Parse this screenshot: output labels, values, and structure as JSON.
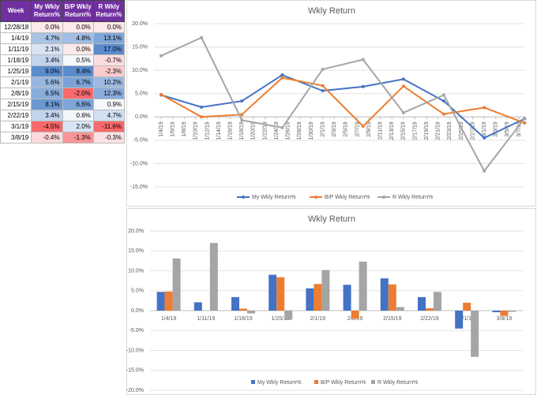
{
  "table": {
    "columns": [
      "Week",
      "My Wkly Return%",
      "B/P Wkly Return%",
      "R Wkly Return%"
    ],
    "rows": [
      [
        "12/28/18",
        "0.0%",
        "0.0%",
        "0.0%"
      ],
      [
        "1/4/19",
        "4.7%",
        "4.8%",
        "13.1%"
      ],
      [
        "1/11/19",
        "2.1%",
        "0.0%",
        "17.0%"
      ],
      [
        "1/18/19",
        "3.4%",
        "0.5%",
        "-0.7%"
      ],
      [
        "1/25/19",
        "9.0%",
        "8.4%",
        "-2.3%"
      ],
      [
        "2/1/19",
        "5.6%",
        "6.7%",
        "10.2%"
      ],
      [
        "2/8/19",
        "6.5%",
        "-2.0%",
        "12.3%"
      ],
      [
        "2/15/19",
        "8.1%",
        "6.6%",
        "0.9%"
      ],
      [
        "2/22/19",
        "3.4%",
        "0.6%",
        "4.7%"
      ],
      [
        "3/1/19",
        "-4.5%",
        "2.0%",
        "-11.6%"
      ],
      [
        "3/8/19",
        "-0.4%",
        "-1.3%",
        "-0.3%"
      ]
    ]
  },
  "chart_data": [
    {
      "type": "line",
      "title": "Wkly Return",
      "x": [
        "1/4/19",
        "1/11/19",
        "1/18/19",
        "1/25/19",
        "2/1/19",
        "2/8/19",
        "2/15/19",
        "2/22/19",
        "3/1/19",
        "3/8/19"
      ],
      "xticks": [
        "1/4/19",
        "1/6/19",
        "1/8/19",
        "1/10/19",
        "1/12/19",
        "1/14/19",
        "1/16/19",
        "1/18/19",
        "1/20/19",
        "1/22/19",
        "1/24/19",
        "1/26/19",
        "1/28/19",
        "1/30/19",
        "2/1/19",
        "2/3/19",
        "2/5/19",
        "2/7/19",
        "2/9/19",
        "2/11/19",
        "2/13/19",
        "2/15/19",
        "2/17/19",
        "2/19/19",
        "2/21/19",
        "2/23/19",
        "2/25/19",
        "2/27/19",
        "3/1/19",
        "3/3/19",
        "3/5/19",
        "3/7/19"
      ],
      "ylim": [
        -15,
        20
      ],
      "yticks": [
        {
          "value": -15,
          "label": "-15.0%"
        },
        {
          "value": -10,
          "label": "-10.0%"
        },
        {
          "value": -5,
          "label": "-5.0%"
        },
        {
          "value": 0,
          "label": "0.0%"
        },
        {
          "value": 5,
          "label": "5.0%"
        },
        {
          "value": 10,
          "label": "10.0%"
        },
        {
          "value": 15,
          "label": "15.0%"
        },
        {
          "value": 20,
          "label": "20.0%"
        }
      ],
      "grid": true,
      "legend": "bottom",
      "series": [
        {
          "name": "My Wkly Return%",
          "color": "#4472c4",
          "values": [
            4.7,
            2.1,
            3.4,
            9.0,
            5.6,
            6.5,
            8.1,
            3.4,
            -4.5,
            -0.4
          ]
        },
        {
          "name": "B/P Wkly Return%",
          "color": "#ed7d31",
          "values": [
            4.8,
            0.0,
            0.5,
            8.4,
            6.7,
            -2.0,
            6.6,
            0.6,
            2.0,
            -1.3
          ]
        },
        {
          "name": "R Wkly Return%",
          "color": "#a5a5a5",
          "values": [
            13.1,
            17.0,
            -0.7,
            -2.3,
            10.2,
            12.3,
            0.9,
            4.7,
            -11.6,
            -0.3
          ]
        }
      ]
    },
    {
      "type": "bar",
      "title": "Wkly Return",
      "categories": [
        "1/4/19",
        "1/11/19",
        "1/18/19",
        "1/25/19",
        "2/1/19",
        "2/8/19",
        "2/15/19",
        "2/22/19",
        "3/1/19",
        "3/8/19"
      ],
      "ylim": [
        -20,
        20
      ],
      "yticks": [
        {
          "value": -20,
          "label": "-20.0%"
        },
        {
          "value": -15,
          "label": "-15.0%"
        },
        {
          "value": -10,
          "label": "-10.0%"
        },
        {
          "value": -5,
          "label": "-5.0%"
        },
        {
          "value": 0,
          "label": "0.0%"
        },
        {
          "value": 5,
          "label": "5.0%"
        },
        {
          "value": 10,
          "label": "10.0%"
        },
        {
          "value": 15,
          "label": "15.0%"
        },
        {
          "value": 20,
          "label": "20.0%"
        }
      ],
      "grid": true,
      "legend": "bottom",
      "series": [
        {
          "name": "My Wkly Return%",
          "color": "#4472c4",
          "values": [
            4.7,
            2.1,
            3.4,
            9.0,
            5.6,
            6.5,
            8.1,
            3.4,
            -4.5,
            -0.4
          ]
        },
        {
          "name": "B/P Wkly Return%",
          "color": "#ed7d31",
          "values": [
            4.8,
            0.0,
            0.5,
            8.4,
            6.7,
            -2.0,
            6.6,
            0.6,
            2.0,
            -1.3
          ]
        },
        {
          "name": "R Wkly Return%",
          "color": "#a5a5a5",
          "values": [
            13.1,
            17.0,
            -0.7,
            -2.3,
            10.2,
            12.3,
            0.9,
            4.7,
            -11.6,
            -0.3
          ]
        }
      ]
    }
  ]
}
